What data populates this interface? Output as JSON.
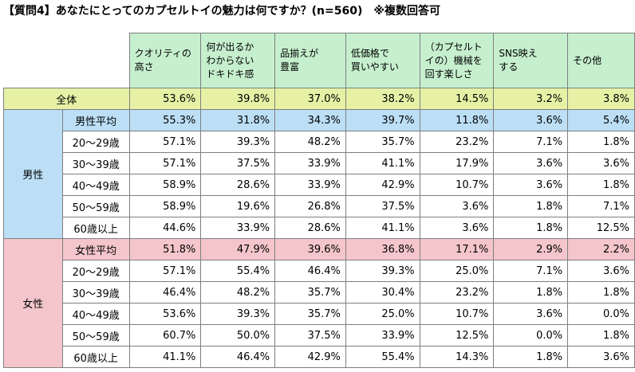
{
  "title": "【質問4】あなたにとってのカプセルトイの魅力は何ですか？(n=560)　※複数回答可",
  "chart_data": {
    "type": "table",
    "columns": [
      "クオリティの高さ",
      "何が出るかわからないドキドキ感",
      "品揃えが豊富",
      "低価格で買いやすい",
      "（カプセルトイの）機械を回す楽しさ",
      "SNS映えする",
      "その他"
    ],
    "column_lines": [
      [
        "クオリティの",
        "高さ"
      ],
      [
        "何が出るか",
        "わからない",
        "ドキドキ感"
      ],
      [
        "品揃えが",
        "豊富"
      ],
      [
        "低価格で",
        "買いやすい"
      ],
      [
        "（カプセルト",
        "イの）機械を",
        "回す楽しさ"
      ],
      [
        "SNS映え",
        "する"
      ],
      [
        "その他"
      ]
    ],
    "total": {
      "label": "全体",
      "values": [
        "53.6%",
        "39.8%",
        "37.0%",
        "38.2%",
        "14.5%",
        "3.2%",
        "3.8%"
      ]
    },
    "groups": [
      {
        "label": "男性",
        "rows": [
          {
            "label": "男性平均",
            "values": [
              "55.3%",
              "31.8%",
              "34.3%",
              "39.7%",
              "11.8%",
              "3.6%",
              "5.4%"
            ]
          },
          {
            "label": "20～29歳",
            "values": [
              "57.1%",
              "39.3%",
              "48.2%",
              "35.7%",
              "23.2%",
              "7.1%",
              "1.8%"
            ]
          },
          {
            "label": "30～39歳",
            "values": [
              "57.1%",
              "37.5%",
              "33.9%",
              "41.1%",
              "17.9%",
              "3.6%",
              "3.6%"
            ]
          },
          {
            "label": "40～49歳",
            "values": [
              "58.9%",
              "28.6%",
              "33.9%",
              "42.9%",
              "10.7%",
              "3.6%",
              "1.8%"
            ]
          },
          {
            "label": "50～59歳",
            "values": [
              "58.9%",
              "19.6%",
              "26.8%",
              "37.5%",
              "3.6%",
              "1.8%",
              "7.1%"
            ]
          },
          {
            "label": "60歳以上",
            "values": [
              "44.6%",
              "33.9%",
              "28.6%",
              "41.1%",
              "3.6%",
              "1.8%",
              "12.5%"
            ]
          }
        ]
      },
      {
        "label": "女性",
        "rows": [
          {
            "label": "女性平均",
            "values": [
              "51.8%",
              "47.9%",
              "39.6%",
              "36.8%",
              "17.1%",
              "2.9%",
              "2.2%"
            ]
          },
          {
            "label": "20～29歳",
            "values": [
              "57.1%",
              "55.4%",
              "46.4%",
              "39.3%",
              "25.0%",
              "7.1%",
              "3.6%"
            ]
          },
          {
            "label": "30～39歳",
            "values": [
              "46.4%",
              "48.2%",
              "35.7%",
              "30.4%",
              "23.2%",
              "1.8%",
              "1.8%"
            ]
          },
          {
            "label": "40～49歳",
            "values": [
              "53.6%",
              "39.3%",
              "35.7%",
              "25.0%",
              "10.7%",
              "3.6%",
              "0.0%"
            ]
          },
          {
            "label": "50～59歳",
            "values": [
              "60.7%",
              "50.0%",
              "37.5%",
              "33.9%",
              "12.5%",
              "0.0%",
              "1.8%"
            ]
          },
          {
            "label": "60歳以上",
            "values": [
              "41.1%",
              "46.4%",
              "42.9%",
              "55.4%",
              "14.3%",
              "1.8%",
              "3.6%"
            ]
          }
        ]
      }
    ]
  },
  "colors": {
    "header": "#c6efce",
    "total": "#e6f1a6",
    "male": "#bcdff6",
    "female": "#f4c6cb"
  }
}
